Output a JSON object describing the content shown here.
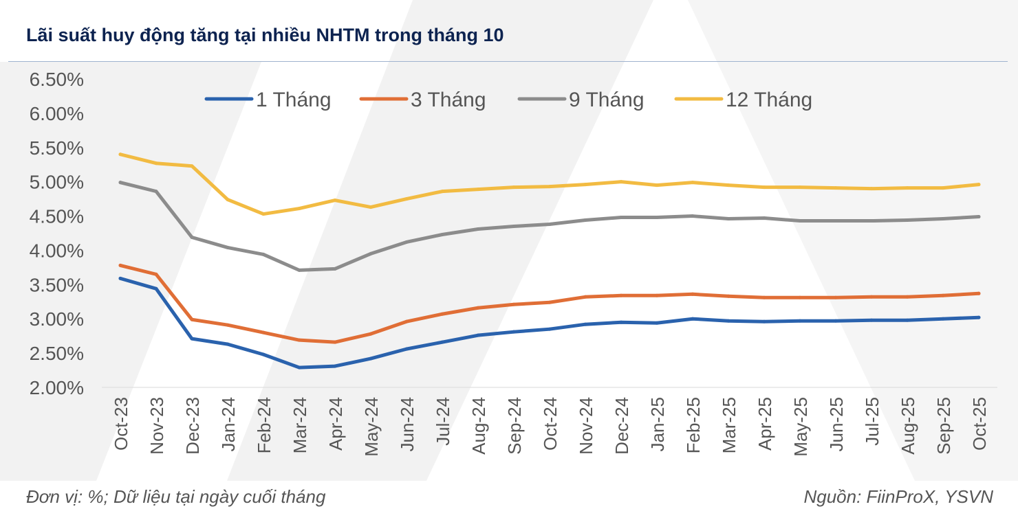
{
  "title": "Lãi suất huy động tăng tại nhiều NHTM trong tháng 10",
  "footer": {
    "note": "Đơn vị: %; Dữ liệu tại ngày cuối tháng",
    "source": "Nguồn: FiinProX, YSVN"
  },
  "chart_data": {
    "type": "line",
    "title": "Lãi suất huy động tăng tại nhiều NHTM trong tháng 10",
    "xlabel": "",
    "ylabel": "",
    "ylim": [
      2.0,
      6.5
    ],
    "yticks": [
      "2.00%",
      "2.50%",
      "3.00%",
      "3.50%",
      "4.00%",
      "4.50%",
      "5.00%",
      "5.50%",
      "6.00%",
      "6.50%"
    ],
    "grid": false,
    "legend": "top",
    "categories": [
      "Oct-23",
      "Nov-23",
      "Dec-23",
      "Jan-24",
      "Feb-24",
      "Mar-24",
      "Apr-24",
      "May-24",
      "Jun-24",
      "Jul-24",
      "Aug-24",
      "Sep-24",
      "Oct-24",
      "Nov-24",
      "Dec-24",
      "Jan-25",
      "Feb-25",
      "Mar-25",
      "Apr-25",
      "May-25",
      "Jun-25",
      "Jul-25",
      "Aug-25",
      "Sep-25",
      "Oct-25"
    ],
    "series": [
      {
        "name": "1 Tháng",
        "color": "#2a62ad",
        "values": [
          3.59,
          3.44,
          2.71,
          2.63,
          2.48,
          2.29,
          2.31,
          2.42,
          2.56,
          2.66,
          2.76,
          2.81,
          2.85,
          2.92,
          2.95,
          2.94,
          3.0,
          2.97,
          2.96,
          2.97,
          2.97,
          2.98,
          2.98,
          3.0,
          3.02
        ]
      },
      {
        "name": "3 Tháng",
        "color": "#e06e36",
        "values": [
          3.78,
          3.65,
          2.99,
          2.91,
          2.8,
          2.69,
          2.66,
          2.78,
          2.96,
          3.07,
          3.16,
          3.21,
          3.24,
          3.32,
          3.34,
          3.34,
          3.36,
          3.33,
          3.31,
          3.31,
          3.31,
          3.32,
          3.32,
          3.34,
          3.37
        ]
      },
      {
        "name": "9 Tháng",
        "color": "#8c8c8c",
        "values": [
          4.99,
          4.86,
          4.19,
          4.04,
          3.94,
          3.71,
          3.73,
          3.95,
          4.12,
          4.23,
          4.31,
          4.35,
          4.38,
          4.44,
          4.48,
          4.48,
          4.5,
          4.46,
          4.47,
          4.43,
          4.43,
          4.43,
          4.44,
          4.46,
          4.49
        ]
      },
      {
        "name": "12 Tháng",
        "color": "#f2bb42",
        "values": [
          5.4,
          5.27,
          5.23,
          4.74,
          4.53,
          4.61,
          4.73,
          4.63,
          4.75,
          4.86,
          4.89,
          4.92,
          4.93,
          4.96,
          5.0,
          4.95,
          4.99,
          4.95,
          4.92,
          4.92,
          4.91,
          4.9,
          4.91,
          4.91,
          4.96
        ]
      }
    ]
  }
}
